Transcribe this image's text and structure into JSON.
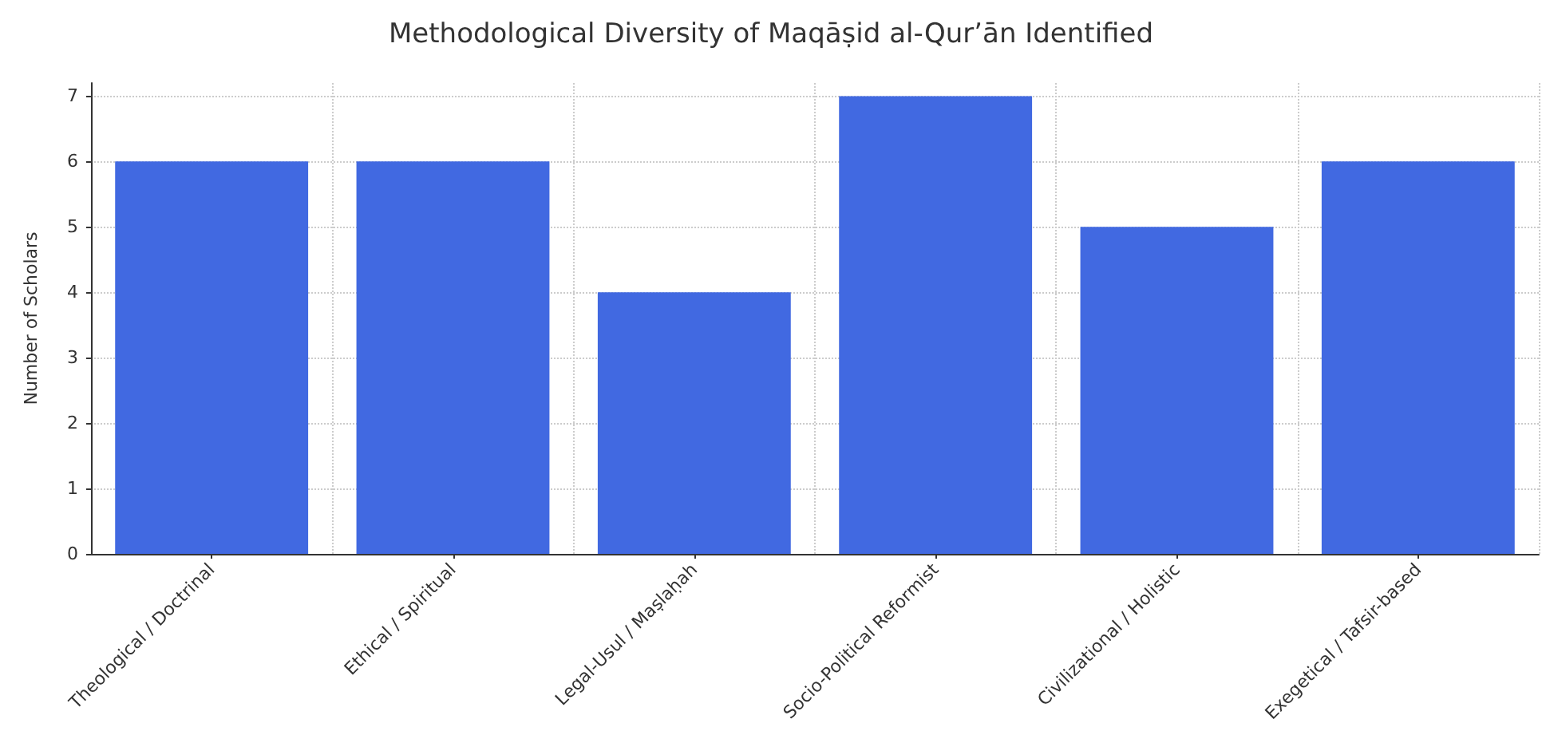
{
  "chart_data": {
    "type": "bar",
    "title": "Methodological Diversity of Maqāṣid al-Qur’ān Identified",
    "ylabel": "Number of Scholars",
    "categories": [
      "Theological / Doctrinal",
      "Ethical / Spiritual",
      "Legal-Usul / Maṣlaḥah",
      "Socio-Political Reformist",
      "Civilizational / Holistic",
      "Exegetical / Tafsir-based"
    ],
    "values": [
      6,
      6,
      4,
      7,
      5,
      6
    ],
    "color": "#4169e1",
    "ylim": [
      0,
      7.2
    ],
    "yticks": [
      0,
      1,
      2,
      3,
      4,
      5,
      6,
      7
    ],
    "grid": true
  }
}
